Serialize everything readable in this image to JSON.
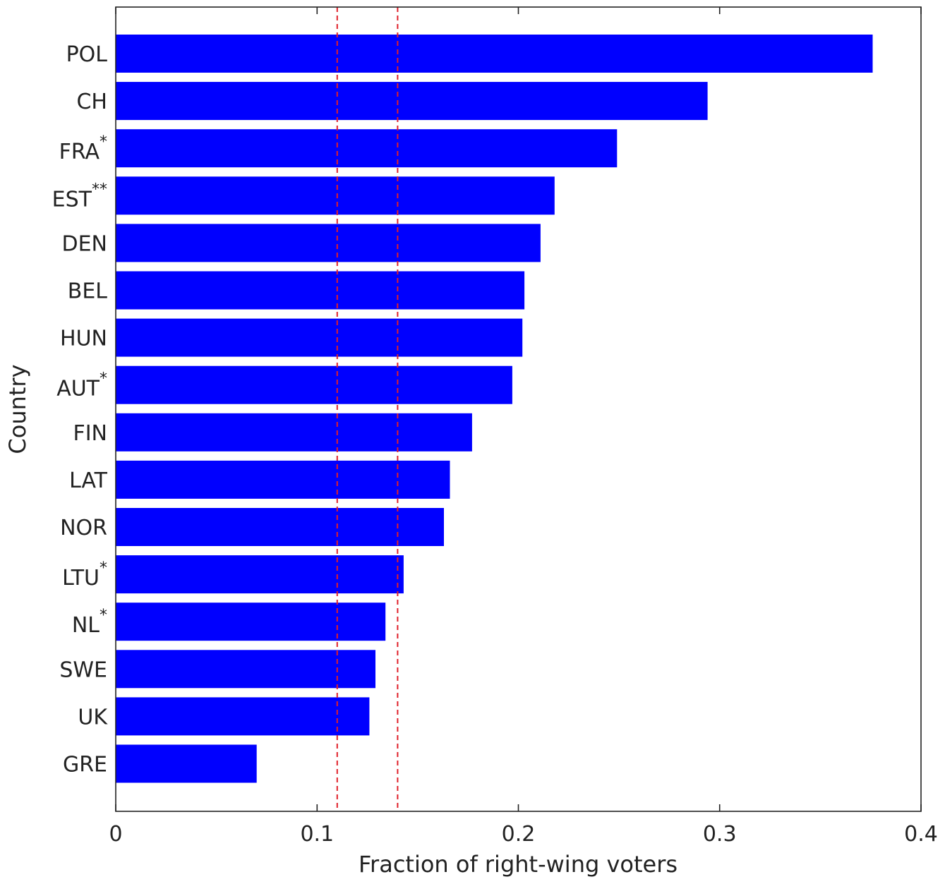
{
  "chart_data": {
    "type": "bar",
    "orientation": "horizontal",
    "xlabel": "Fraction of right-wing voters",
    "ylabel": "Country",
    "xlim": [
      0,
      0.4
    ],
    "xticks": [
      {
        "value": 0,
        "label": "0"
      },
      {
        "value": 0.1,
        "label": "0.1"
      },
      {
        "value": 0.2,
        "label": "0.2"
      },
      {
        "value": 0.3,
        "label": "0.3"
      },
      {
        "value": 0.4,
        "label": "0.4"
      }
    ],
    "grid": false,
    "bar_color": "#0000ff",
    "reference_line_color": "#e0202a",
    "reference_lines": [
      0.11,
      0.14
    ],
    "categories": [
      {
        "label": "POL",
        "sup": "",
        "value": 0.376
      },
      {
        "label": "CH",
        "sup": "",
        "value": 0.294
      },
      {
        "label": "FRA",
        "sup": "*",
        "value": 0.249
      },
      {
        "label": "EST",
        "sup": "**",
        "value": 0.218
      },
      {
        "label": "DEN",
        "sup": "",
        "value": 0.211
      },
      {
        "label": "BEL",
        "sup": "",
        "value": 0.203
      },
      {
        "label": "HUN",
        "sup": "",
        "value": 0.202
      },
      {
        "label": "AUT",
        "sup": "*",
        "value": 0.197
      },
      {
        "label": "FIN",
        "sup": "",
        "value": 0.177
      },
      {
        "label": "LAT",
        "sup": "",
        "value": 0.166
      },
      {
        "label": "NOR",
        "sup": "",
        "value": 0.163
      },
      {
        "label": "LTU",
        "sup": "*",
        "value": 0.143
      },
      {
        "label": "NL",
        "sup": "*",
        "value": 0.134
      },
      {
        "label": "SWE",
        "sup": "",
        "value": 0.129
      },
      {
        "label": "UK",
        "sup": "",
        "value": 0.126
      },
      {
        "label": "GRE",
        "sup": "",
        "value": 0.07
      }
    ]
  }
}
